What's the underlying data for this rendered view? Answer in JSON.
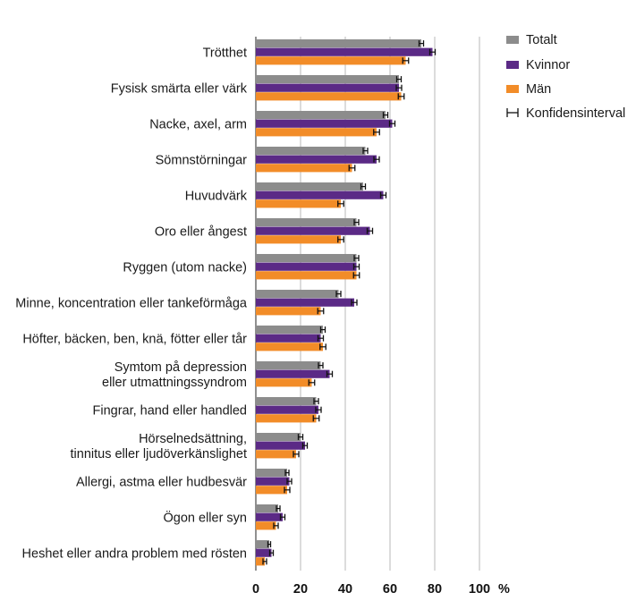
{
  "chart_data": {
    "type": "bar",
    "orientation": "horizontal",
    "categories": [
      [
        "Trötthet"
      ],
      [
        "Fysisk smärta eller värk"
      ],
      [
        "Nacke, axel, arm"
      ],
      [
        "Sömnstörningar"
      ],
      [
        "Huvudvärk"
      ],
      [
        "Oro eller ångest"
      ],
      [
        "Ryggen (utom nacke)"
      ],
      [
        "Minne, koncentration eller tankeförmåga"
      ],
      [
        "Höfter, bäcken, ben, knä, fötter eller tår"
      ],
      [
        "Symtom på depression",
        "eller utmattningssyndrom"
      ],
      [
        "Fingrar, hand eller handled"
      ],
      [
        "Hörselnedsättning,",
        "tinnitus eller ljudöverkänslighet"
      ],
      [
        "Allergi, astma eller hudbesvär"
      ],
      [
        "Ögon eller syn"
      ],
      [
        "Heshet eller andra problem med rösten"
      ]
    ],
    "series": [
      {
        "name": "Totalt",
        "color": "#8c8c8c",
        "values": [
          74,
          64,
          58,
          49,
          48,
          45,
          45,
          37,
          30,
          29,
          27,
          20,
          14,
          10,
          6
        ],
        "ci": [
          1.0,
          1.0,
          1.0,
          1.0,
          1.0,
          1.0,
          1.0,
          1.0,
          1.0,
          1.0,
          1.0,
          1.0,
          0.8,
          0.8,
          0.6
        ]
      },
      {
        "name": "Kvinnor",
        "color": "#5b2a86",
        "values": [
          79,
          64,
          61,
          54,
          57,
          51,
          45,
          44,
          29,
          33,
          28,
          22,
          15,
          12,
          7
        ],
        "ci": [
          1.2,
          1.2,
          1.2,
          1.2,
          1.2,
          1.2,
          1.2,
          1.2,
          1.2,
          1.2,
          1.2,
          1.0,
          1.0,
          1.0,
          0.8
        ]
      },
      {
        "name": "Män",
        "color": "#f28c28",
        "values": [
          67,
          65,
          54,
          43,
          38,
          38,
          45,
          29,
          30,
          25,
          27,
          18,
          14,
          9,
          4
        ],
        "ci": [
          1.3,
          1.3,
          1.3,
          1.3,
          1.3,
          1.3,
          1.3,
          1.3,
          1.3,
          1.3,
          1.3,
          1.2,
          1.2,
          1.0,
          0.8
        ]
      }
    ],
    "legend": {
      "entries": [
        "Totalt",
        "Kvinnor",
        "Män",
        "Konfidensinterval"
      ],
      "position": "top-right"
    },
    "xlim": [
      0,
      100
    ],
    "xticks": [
      "0",
      "20",
      "40",
      "60",
      "80",
      "100"
    ],
    "unit_label": "%",
    "gridlines": true
  }
}
